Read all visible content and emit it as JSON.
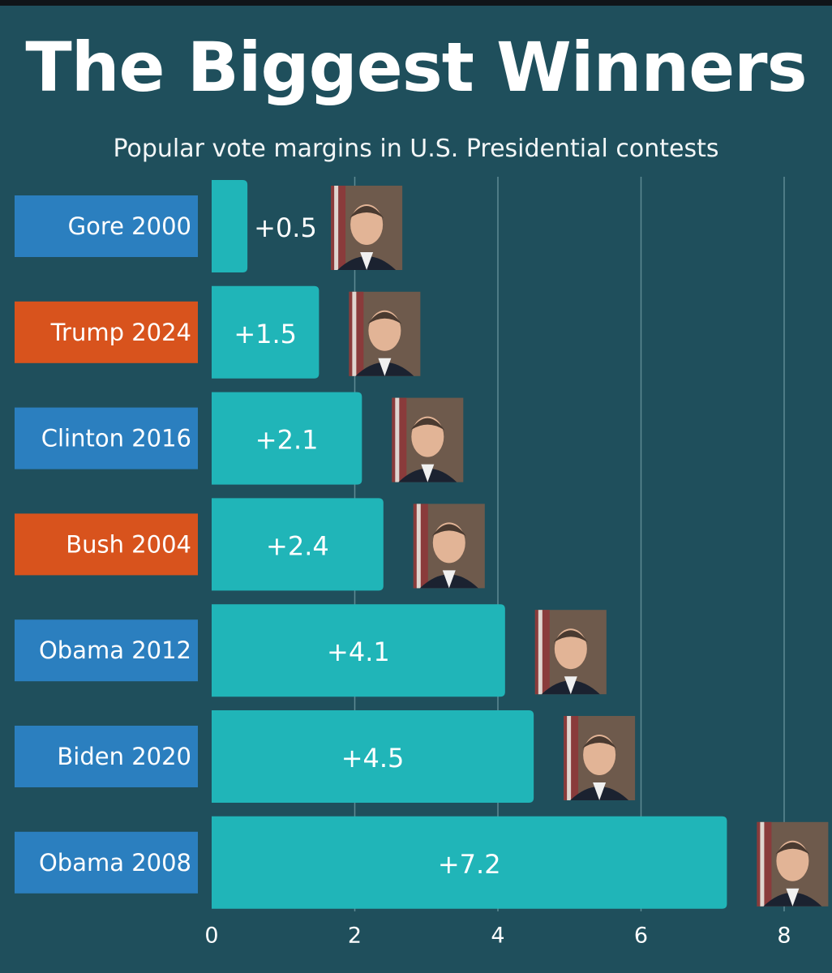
{
  "title": "The Biggest Winners",
  "subtitle": "Popular vote margins in U.S. Presidential contests",
  "colors": {
    "background": "#1f4f5c",
    "bar": "#20b5b8",
    "democrat": "#2b7fbf",
    "republican": "#d8531d",
    "gridline": "#5f8a93"
  },
  "chart_data": {
    "type": "bar",
    "orientation": "horizontal",
    "categories": [
      "Gore 2000",
      "Trump 2024",
      "Clinton 2016",
      "Bush 2004",
      "Obama 2012",
      "Biden 2020",
      "Obama 2008"
    ],
    "values": [
      0.5,
      1.5,
      2.1,
      2.4,
      4.1,
      4.5,
      7.2
    ],
    "value_labels": [
      "+0.5",
      "+1.5",
      "+2.1",
      "+2.4",
      "+4.1",
      "+4.5",
      "+7.2"
    ],
    "party": [
      "democrat",
      "republican",
      "democrat",
      "republican",
      "democrat",
      "democrat",
      "democrat"
    ],
    "portrait_icons": [
      "gore-portrait-icon",
      "trump-portrait-icon",
      "clinton-portrait-icon",
      "bush-portrait-icon",
      "obama-portrait-icon",
      "biden-portrait-icon",
      "obama-portrait-icon"
    ],
    "xlim": [
      0,
      8
    ],
    "xticks": [
      0,
      2,
      4,
      6,
      8
    ],
    "grid": true
  }
}
